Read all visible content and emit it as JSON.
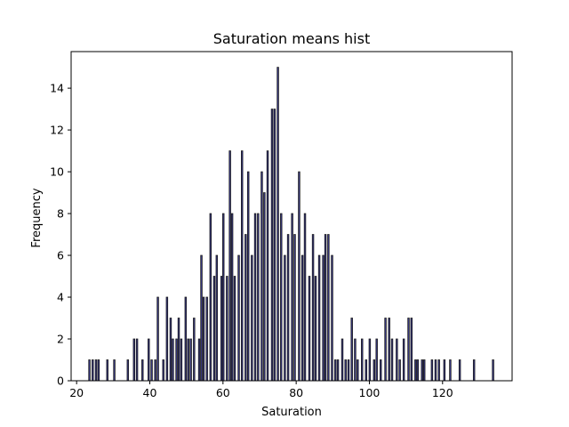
{
  "chart_data": {
    "type": "bar",
    "title": "Saturation means hist",
    "xlabel": "Saturation",
    "ylabel": "Frequency",
    "xlim": [
      18.5,
      139
    ],
    "ylim": [
      0,
      15.75
    ],
    "xticks": [
      20,
      40,
      60,
      80,
      100,
      120
    ],
    "yticks": [
      0,
      2,
      4,
      6,
      8,
      10,
      12,
      14
    ],
    "bar_width": 0.4,
    "bar_color": "#3a3a8c",
    "edge_color": "#1a1a1a",
    "grid": false,
    "x": [
      23.5,
      24.4,
      25.3,
      26.0,
      28.4,
      30.3,
      34.0,
      35.7,
      36.5,
      38.0,
      39.7,
      40.5,
      41.5,
      42.2,
      43.7,
      44.7,
      45.7,
      46.3,
      47.3,
      47.9,
      48.6,
      49.8,
      50.5,
      51.2,
      52.1,
      53.5,
      54.1,
      54.7,
      55.6,
      56.6,
      57.6,
      58.3,
      59.6,
      60.1,
      61.1,
      61.9,
      62.5,
      63.2,
      64.3,
      65.2,
      66.2,
      66.9,
      67.9,
      68.8,
      69.6,
      70.6,
      71.3,
      72.2,
      73.4,
      74.1,
      75.0,
      75.9,
      76.9,
      77.8,
      78.9,
      79.6,
      80.8,
      81.7,
      82.4,
      83.6,
      84.6,
      85.3,
      86.3,
      87.4,
      88.0,
      88.8,
      89.8,
      90.7,
      91.4,
      92.6,
      93.5,
      94.3,
      95.2,
      96.1,
      96.8,
      98.0,
      99.1,
      100.1,
      101.3,
      102.0,
      103.1,
      104.4,
      105.4,
      106.2,
      107.5,
      108.3,
      109.4,
      110.7,
      111.5,
      112.6,
      113.2,
      114.4,
      115.0,
      117.1,
      118.1,
      119.0,
      120.5,
      122.1,
      124.7,
      128.6,
      133.8
    ],
    "values": [
      1,
      1,
      1,
      1,
      1,
      1,
      1,
      2,
      2,
      1,
      2,
      1,
      1,
      4,
      1,
      4,
      3,
      2,
      2,
      3,
      2,
      4,
      2,
      2,
      3,
      2,
      6,
      4,
      4,
      8,
      5,
      6,
      5,
      8,
      5,
      11,
      8,
      5,
      6,
      11,
      7,
      10,
      6,
      8,
      8,
      10,
      9,
      11,
      13,
      13,
      15,
      8,
      6,
      7,
      8,
      7,
      10,
      6,
      8,
      5,
      7,
      5,
      6,
      6,
      7,
      7,
      6,
      1,
      1,
      2,
      1,
      1,
      3,
      2,
      1,
      2,
      1,
      2,
      1,
      2,
      1,
      3,
      3,
      2,
      2,
      1,
      2,
      3,
      3,
      1,
      1,
      1,
      1,
      1,
      1,
      1,
      1,
      1,
      1,
      1,
      1
    ]
  }
}
